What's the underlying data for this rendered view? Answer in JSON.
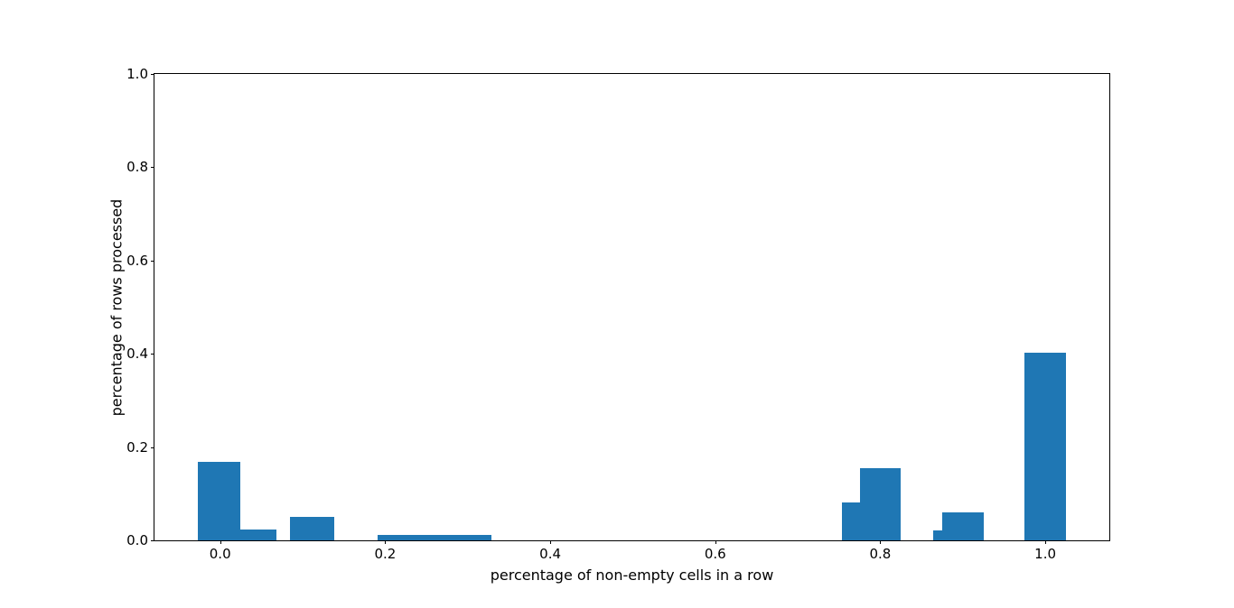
{
  "chart_data": {
    "type": "bar",
    "subtype": "histogram",
    "xlabel": "percentage of non-empty cells in a row",
    "ylabel": "percentage of rows processed",
    "xlim": [
      -0.0796,
      1.0776
    ],
    "ylim": [
      0,
      1.0
    ],
    "xticks": [
      0.0,
      0.2,
      0.4,
      0.6,
      0.8,
      1.0
    ],
    "xtick_labels": [
      "0.0",
      "0.2",
      "0.4",
      "0.6",
      "0.8",
      "1.0"
    ],
    "yticks": [
      0.0,
      0.2,
      0.4,
      0.6,
      0.8,
      1.0
    ],
    "ytick_labels": [
      "0.0",
      "0.2",
      "0.4",
      "0.6",
      "0.8",
      "1.0"
    ],
    "grid": false,
    "legend": null,
    "bar_color": "#1f77b4",
    "bars": [
      {
        "x_start": -0.027,
        "x_end": 0.024,
        "height": 0.168
      },
      {
        "x_start": 0.024,
        "x_end": 0.068,
        "height": 0.023
      },
      {
        "x_start": 0.085,
        "x_end": 0.138,
        "height": 0.05
      },
      {
        "x_start": 0.191,
        "x_end": 0.329,
        "height": 0.011
      },
      {
        "x_start": 0.753,
        "x_end": 0.775,
        "height": 0.081
      },
      {
        "x_start": 0.775,
        "x_end": 0.825,
        "height": 0.154
      },
      {
        "x_start": 0.864,
        "x_end": 0.875,
        "height": 0.021
      },
      {
        "x_start": 0.875,
        "x_end": 0.925,
        "height": 0.06
      },
      {
        "x_start": 0.975,
        "x_end": 1.025,
        "height": 0.403
      }
    ]
  }
}
